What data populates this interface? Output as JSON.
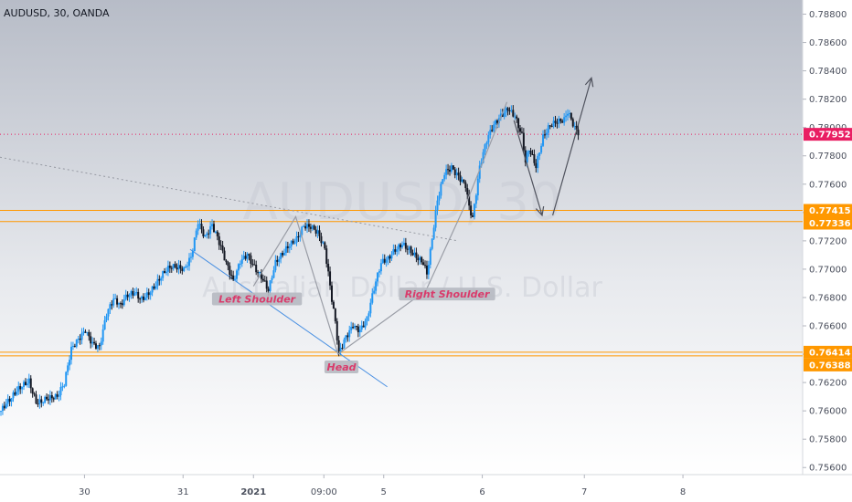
{
  "symbol_line": "AUDUSD, 30, OANDA",
  "watermark": {
    "symbol": "AUDUSD, 30",
    "description": "Australian Dollar / U.S. Dollar"
  },
  "chart_data": {
    "type": "candlestick",
    "title": "AUDUSD, 30, OANDA",
    "ylim": [
      0.7555,
      0.789
    ],
    "xlim": [
      0,
      228
    ],
    "grid": false,
    "y_ticks": [
      "0.78800",
      "0.78600",
      "0.78400",
      "0.78200",
      "0.78000",
      "0.77800",
      "0.77600",
      "0.77400",
      "0.77200",
      "0.77000",
      "0.76800",
      "0.76600",
      "0.76400",
      "0.76200",
      "0.76000",
      "0.75800",
      "0.75600"
    ],
    "x_ticks": [
      {
        "x": 24,
        "label": "30",
        "bold": false
      },
      {
        "x": 52,
        "label": "31",
        "bold": false
      },
      {
        "x": 72,
        "label": "2021",
        "bold": true
      },
      {
        "x": 92,
        "label": "09:00",
        "bold": false
      },
      {
        "x": 109,
        "label": "5",
        "bold": false
      },
      {
        "x": 137,
        "label": "6",
        "bold": false
      },
      {
        "x": 166,
        "label": "7",
        "bold": false
      },
      {
        "x": 194,
        "label": "8",
        "bold": false
      }
    ],
    "price_path": [
      [
        0,
        0.76
      ],
      [
        3,
        0.7605
      ],
      [
        6,
        0.7615
      ],
      [
        8,
        0.7622
      ],
      [
        10,
        0.761
      ],
      [
        13,
        0.7612
      ],
      [
        16,
        0.7608
      ],
      [
        18,
        0.7615
      ],
      [
        20,
        0.764
      ],
      [
        22,
        0.765
      ],
      [
        24,
        0.766
      ],
      [
        26,
        0.7652
      ],
      [
        28,
        0.7648
      ],
      [
        30,
        0.7668
      ],
      [
        32,
        0.7675
      ],
      [
        34,
        0.767
      ],
      [
        36,
        0.768
      ],
      [
        38,
        0.7685
      ],
      [
        40,
        0.7683
      ],
      [
        42,
        0.7687
      ],
      [
        44,
        0.769
      ],
      [
        46,
        0.7694
      ],
      [
        48,
        0.7697
      ],
      [
        50,
        0.7698
      ],
      [
        52,
        0.77
      ],
      [
        54,
        0.7712
      ],
      [
        56,
        0.7738
      ],
      [
        58,
        0.7725
      ],
      [
        60,
        0.773
      ],
      [
        62,
        0.7715
      ],
      [
        64,
        0.77
      ],
      [
        66,
        0.769
      ],
      [
        68,
        0.7708
      ],
      [
        70,
        0.7715
      ],
      [
        72,
        0.7705
      ],
      [
        74,
        0.7695
      ],
      [
        76,
        0.7682
      ],
      [
        78,
        0.77
      ],
      [
        80,
        0.7708
      ],
      [
        82,
        0.7718
      ],
      [
        84,
        0.7725
      ],
      [
        86,
        0.7735
      ],
      [
        88,
        0.7732
      ],
      [
        90,
        0.7724
      ],
      [
        92,
        0.771
      ],
      [
        94,
        0.7675
      ],
      [
        95,
        0.766
      ],
      [
        96,
        0.764
      ],
      [
        98,
        0.7655
      ],
      [
        100,
        0.7665
      ],
      [
        102,
        0.766
      ],
      [
        104,
        0.7665
      ],
      [
        106,
        0.7683
      ],
      [
        108,
        0.77
      ],
      [
        110,
        0.7705
      ],
      [
        112,
        0.7715
      ],
      [
        114,
        0.7722
      ],
      [
        116,
        0.7718
      ],
      [
        118,
        0.771
      ],
      [
        120,
        0.7702
      ],
      [
        121,
        0.7693
      ],
      [
        122,
        0.7708
      ],
      [
        124,
        0.7745
      ],
      [
        126,
        0.7768
      ],
      [
        128,
        0.7775
      ],
      [
        130,
        0.777
      ],
      [
        132,
        0.7762
      ],
      [
        133,
        0.7745
      ],
      [
        134,
        0.7735
      ],
      [
        136,
        0.7768
      ],
      [
        138,
        0.7787
      ],
      [
        140,
        0.78
      ],
      [
        142,
        0.781
      ],
      [
        144,
        0.7818
      ],
      [
        146,
        0.7812
      ],
      [
        148,
        0.7795
      ],
      [
        149,
        0.7775
      ],
      [
        150,
        0.7782
      ],
      [
        152,
        0.7768
      ],
      [
        154,
        0.779
      ],
      [
        156,
        0.7802
      ],
      [
        158,
        0.7808
      ],
      [
        160,
        0.781
      ],
      [
        161,
        0.7815
      ],
      [
        162,
        0.7808
      ],
      [
        163,
        0.78
      ],
      [
        164,
        0.7795
      ]
    ],
    "horizontal_levels": [
      {
        "value": 0.77415,
        "label": "0.77415",
        "color": "#ff9800"
      },
      {
        "value": 0.77336,
        "label": "0.77336",
        "color": "#ff9800"
      },
      {
        "value": 0.76414,
        "label": "0.76414",
        "color": "#ff9800"
      },
      {
        "value": 0.76388,
        "label": "0.76388",
        "color": "#ff9800"
      }
    ],
    "last_price": {
      "value": 0.77952,
      "label": "0.77952",
      "color": "#e91e63"
    },
    "trendlines": [
      {
        "from": [
          0,
          0.7779
        ],
        "to": [
          130,
          0.772
        ],
        "style": "dotted",
        "color": "#9598a1"
      },
      {
        "from": [
          54,
          0.7714
        ],
        "to": [
          110,
          0.7617
        ],
        "style": "solid",
        "color": "#4a90e2"
      }
    ],
    "pattern_path": [
      [
        72,
        0.7688
      ],
      [
        84,
        0.7737
      ],
      [
        96,
        0.764
      ],
      [
        121,
        0.7685
      ],
      [
        133,
        0.775
      ],
      [
        144,
        0.7818
      ]
    ],
    "arrows": [
      {
        "from": [
          146,
          0.7805
        ],
        "to": [
          154,
          0.7738
        ]
      },
      {
        "from": [
          157,
          0.7738
        ],
        "to": [
          168,
          0.7835
        ]
      }
    ],
    "annotations": [
      {
        "text": "Left Shoulder",
        "at": [
          73,
          0.7679
        ]
      },
      {
        "text": "Head",
        "at": [
          97,
          0.7631
        ]
      },
      {
        "text": "Right Shoulder",
        "at": [
          127,
          0.76825
        ]
      }
    ],
    "colors": {
      "up_candle": "#2196f3",
      "down_candle": "#131722",
      "background_top": "#b7bcc7",
      "background_bottom": "#ffffff"
    }
  }
}
